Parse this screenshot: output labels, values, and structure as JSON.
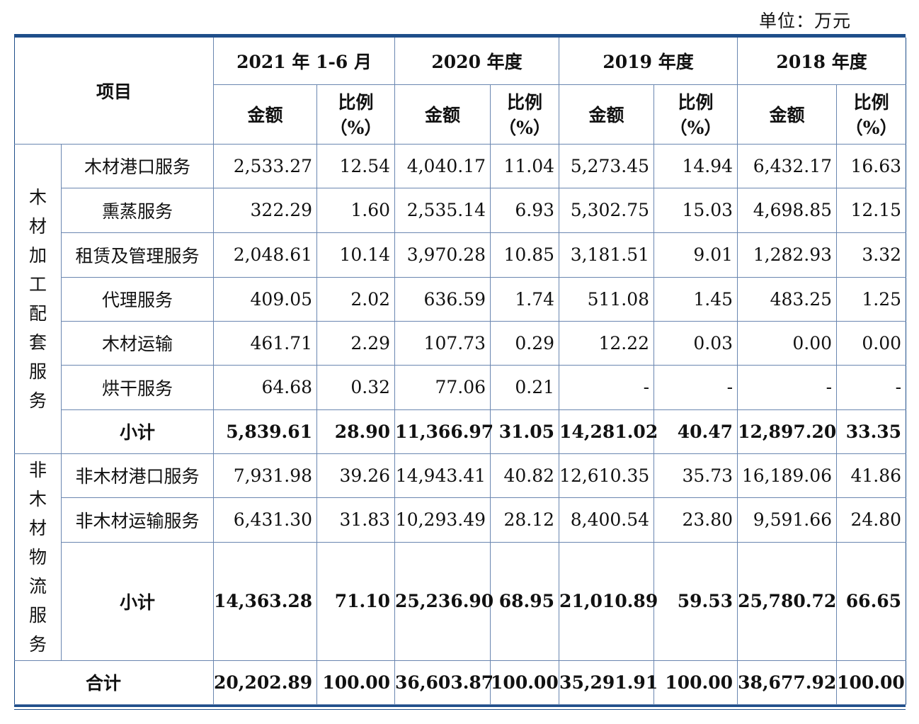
{
  "unit": "单位：万元",
  "header": {
    "item": "项目",
    "periods": [
      "2021 年 1-6 月",
      "2020 年度",
      "2019 年度",
      "2018 年度"
    ],
    "amount": "金额",
    "ratio_line1": "比例",
    "ratio_line2": "（%）"
  },
  "groups": [
    {
      "label_chars": [
        "木",
        "材",
        "加",
        "工",
        "配",
        "套",
        "服",
        "务"
      ],
      "rows": [
        {
          "name": "木材港口服务",
          "values": [
            "2,533.27",
            "12.54",
            "4,040.17",
            "11.04",
            "5,273.45",
            "14.94",
            "6,432.17",
            "16.63"
          ]
        },
        {
          "name": "熏蒸服务",
          "values": [
            "322.29",
            "1.60",
            "2,535.14",
            "6.93",
            "5,302.75",
            "15.03",
            "4,698.85",
            "12.15"
          ]
        },
        {
          "name": "租赁及管理服务",
          "values": [
            "2,048.61",
            "10.14",
            "3,970.28",
            "10.85",
            "3,181.51",
            "9.01",
            "1,282.93",
            "3.32"
          ]
        },
        {
          "name": "代理服务",
          "values": [
            "409.05",
            "2.02",
            "636.59",
            "1.74",
            "511.08",
            "1.45",
            "483.25",
            "1.25"
          ]
        },
        {
          "name": "木材运输",
          "values": [
            "461.71",
            "2.29",
            "107.73",
            "0.29",
            "12.22",
            "0.03",
            "0.00",
            "0.00"
          ]
        },
        {
          "name": "烘干服务",
          "values": [
            "64.68",
            "0.32",
            "77.06",
            "0.21",
            "-",
            "-",
            "-",
            "-"
          ]
        }
      ],
      "subtotal": {
        "name": "小计",
        "values": [
          "5,839.61",
          "28.90",
          "11,366.97",
          "31.05",
          "14,281.02",
          "40.47",
          "12,897.20",
          "33.35"
        ]
      }
    },
    {
      "label_chars": [
        "非",
        "木",
        "材",
        "物",
        "流",
        "服",
        "务"
      ],
      "rows": [
        {
          "name": "非木材港口服务",
          "values": [
            "7,931.98",
            "39.26",
            "14,943.41",
            "40.82",
            "12,610.35",
            "35.73",
            "16,189.06",
            "41.86"
          ]
        },
        {
          "name": "非木材运输服务",
          "values": [
            "6,431.30",
            "31.83",
            "10,293.49",
            "28.12",
            "8,400.54",
            "23.80",
            "9,591.66",
            "24.80"
          ]
        }
      ],
      "subtotal": {
        "name": "小计",
        "values": [
          "14,363.28",
          "71.10",
          "25,236.90",
          "68.95",
          "21,010.89",
          "59.53",
          "25,780.72",
          "66.65"
        ]
      }
    }
  ],
  "total": {
    "name": "合计",
    "values": [
      "20,202.89",
      "100.00",
      "36,603.87",
      "100.00",
      "35,291.91",
      "100.00",
      "38,677.92",
      "100.00"
    ]
  }
}
